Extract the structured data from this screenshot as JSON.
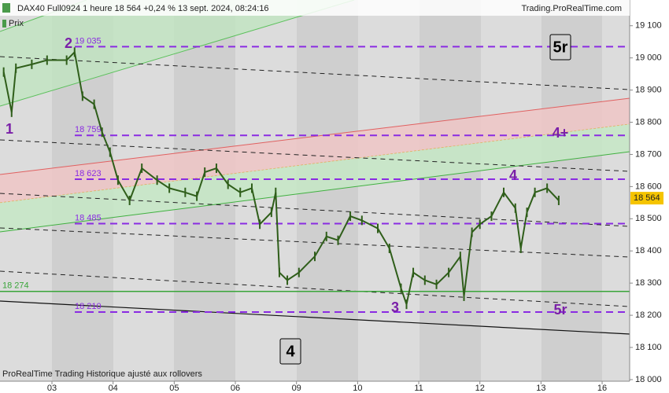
{
  "header": {
    "title": "DAX40 Full0924 1 heure 18 564 +0,24 % 13 sept. 2024, 08:24:16",
    "source": "Trading.ProRealTime.com"
  },
  "footer": "ProRealTime Trading  Historique ajusté aux rollovers",
  "chart_data": {
    "type": "line",
    "series": [
      {
        "name": "Prix",
        "color": "#2f5e1a",
        "x": [
          0.21,
          0.34,
          0.41,
          0.67,
          0.92,
          1.24,
          1.37,
          1.5,
          1.69,
          1.82,
          1.95,
          2.08,
          2.27,
          2.47,
          2.72,
          2.92,
          3.18,
          3.37,
          3.5,
          3.69,
          3.88,
          4.08,
          4.27,
          4.4,
          4.59,
          4.66,
          4.72,
          4.85,
          5.04,
          5.3,
          5.49,
          5.68,
          5.88,
          6.07,
          6.33,
          6.52,
          6.71,
          6.8,
          6.91,
          7.1,
          7.29,
          7.49,
          7.68,
          7.74,
          7.87,
          8.0,
          8.19,
          8.39,
          8.58,
          8.67,
          8.77,
          8.9,
          9.1,
          9.29
        ],
        "values": [
          18956,
          18831,
          18968,
          18980,
          18993,
          18993,
          19018,
          18881,
          18856,
          18769,
          18707,
          18620,
          18557,
          18657,
          18620,
          18595,
          18582,
          18570,
          18645,
          18657,
          18607,
          18582,
          18595,
          18483,
          18520,
          18582,
          18333,
          18309,
          18333,
          18383,
          18445,
          18433,
          18508,
          18495,
          18470,
          18408,
          18284,
          18234,
          18333,
          18309,
          18296,
          18333,
          18383,
          18259,
          18458,
          18483,
          18508,
          18582,
          18533,
          18408,
          18520,
          18582,
          18595,
          18557
        ]
      }
    ],
    "xlim": [
      0.15,
      10.45
    ],
    "xticks": [
      {
        "value": 1,
        "label": "03"
      },
      {
        "value": 2,
        "label": "04"
      },
      {
        "value": 3,
        "label": "05"
      },
      {
        "value": 4,
        "label": "06"
      },
      {
        "value": 5,
        "label": "09"
      },
      {
        "value": 6,
        "label": "10"
      },
      {
        "value": 7,
        "label": "11"
      },
      {
        "value": 8,
        "label": "12"
      },
      {
        "value": 9,
        "label": "13"
      },
      {
        "value": 10,
        "label": "16"
      }
    ],
    "ylim": [
      17995,
      19180
    ],
    "yticks": [
      {
        "value": 19100,
        "label": "19 100"
      },
      {
        "value": 19000,
        "label": "19 000"
      },
      {
        "value": 18900,
        "label": "18 900"
      },
      {
        "value": 18800,
        "label": "18 800"
      },
      {
        "value": 18700,
        "label": "18 700"
      },
      {
        "value": 18600,
        "label": "18 600"
      },
      {
        "value": 18500,
        "label": "18 500"
      },
      {
        "value": 18400,
        "label": "18 400"
      },
      {
        "value": 18300,
        "label": "18 300"
      },
      {
        "value": 18200,
        "label": "18 200"
      },
      {
        "value": 18100,
        "label": "18 100"
      },
      {
        "value": 18000,
        "label": "18 000"
      }
    ],
    "levels": [
      {
        "value": 19035,
        "label": "19 035"
      },
      {
        "value": 18759,
        "label": "18 759"
      },
      {
        "value": 18623,
        "label": "18 623"
      },
      {
        "value": 18485,
        "label": "18 485"
      },
      {
        "value": 18210,
        "label": "18 210"
      }
    ],
    "level_color": "#8a2be2",
    "support": {
      "value": 18274,
      "label": "18 274",
      "color": "#3aa53a"
    },
    "last_price": {
      "value": 18564,
      "label": "18 564"
    },
    "annotations": [
      "1",
      "2",
      "3",
      "4",
      "4+",
      "5r",
      "5r",
      "4"
    ]
  }
}
